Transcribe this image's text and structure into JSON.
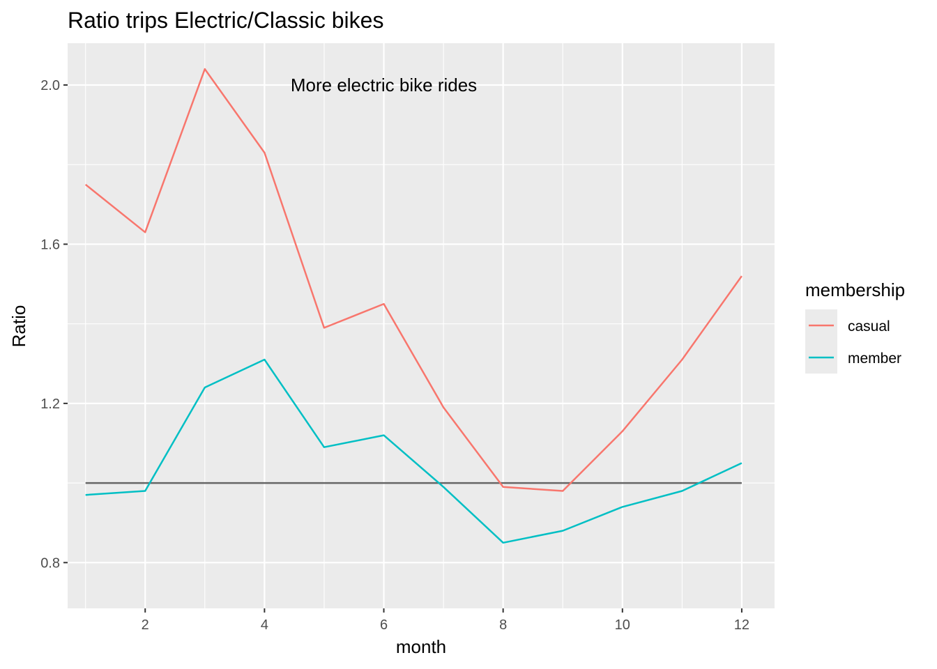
{
  "chart_data": {
    "type": "line",
    "title": "Ratio trips Electric/Classic bikes",
    "xlabel": "month",
    "ylabel": "Ratio",
    "x": [
      1,
      2,
      3,
      4,
      5,
      6,
      7,
      8,
      9,
      10,
      11,
      12
    ],
    "xlim": [
      0.7,
      12.55
    ],
    "ylim": [
      0.685,
      2.105
    ],
    "x_ticks": [
      2,
      4,
      6,
      8,
      10,
      12
    ],
    "x_tick_labels": [
      "2",
      "4",
      "6",
      "8",
      "10",
      "12"
    ],
    "y_ticks": [
      0.8,
      1.2,
      1.6,
      2.0
    ],
    "y_tick_labels": [
      "0.8",
      "1.2",
      "1.6",
      "2.0"
    ],
    "series": [
      {
        "name": "casual",
        "color": "#F8766D",
        "values": [
          1.75,
          1.63,
          2.04,
          1.83,
          1.39,
          1.45,
          1.19,
          0.99,
          0.98,
          1.13,
          1.31,
          1.52
        ]
      },
      {
        "name": "member",
        "color": "#00BFC4",
        "values": [
          0.97,
          0.98,
          1.24,
          1.31,
          1.09,
          1.12,
          0.99,
          0.85,
          0.88,
          0.94,
          0.98,
          1.05
        ]
      }
    ],
    "reference_line": {
      "y": 1.0,
      "x_from": 1,
      "x_to": 12,
      "color": "#666666"
    },
    "annotation": {
      "text": "More electric bike rides",
      "x": 6,
      "y": 2.0
    },
    "legend": {
      "title": "membership",
      "placement": "right"
    },
    "grid": true,
    "panel_background": "#EBEBEB"
  }
}
